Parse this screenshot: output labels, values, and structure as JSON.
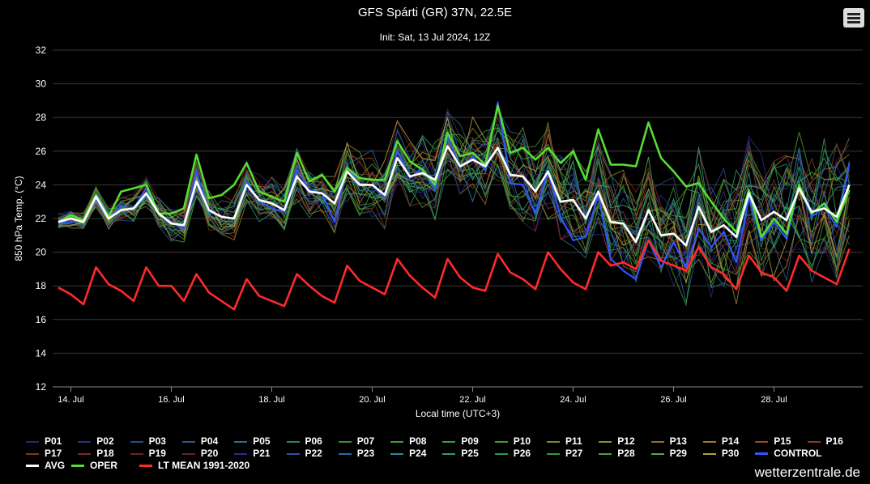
{
  "header": {
    "title": "GFS Spárti (GR) 37N, 22.5E",
    "subtitle": "Init: Sat, 13 Jul 2024, 12Z",
    "menu_icon": "hamburger-menu-icon"
  },
  "brand": "wetterzentrale.de",
  "chart_data": {
    "type": "line",
    "title": "GFS Spárti (GR) 37N, 22.5E",
    "subtitle": "Init: Sat, 13 Jul 2024, 12Z",
    "xlabel": "Local time (UTC+3)",
    "ylabel": "850 hPa Temp. (°C)",
    "ylim": [
      12,
      32
    ],
    "yticks": [
      "12",
      "14",
      "16",
      "18",
      "20",
      "22",
      "24",
      "26",
      "28",
      "30",
      "32"
    ],
    "xticks": [
      "14. Jul",
      "16. Jul",
      "18. Jul",
      "20. Jul",
      "22. Jul",
      "24. Jul",
      "26. Jul",
      "28. Jul"
    ],
    "x_start_label": "13 Jul 2024 21:00 local",
    "x_step_hours": 6,
    "grid": "horizontal",
    "legend_position": "bottom",
    "ensemble_member_names": [
      "P01",
      "P02",
      "P03",
      "P04",
      "P05",
      "P06",
      "P07",
      "P08",
      "P09",
      "P10",
      "P11",
      "P12",
      "P13",
      "P14",
      "P15",
      "P16",
      "P17",
      "P18",
      "P19",
      "P20",
      "P21",
      "P22",
      "P23",
      "P24",
      "P25",
      "P26",
      "P27",
      "P28",
      "P29",
      "P30"
    ],
    "ensemble_colors": [
      "#1e2d6e",
      "#22357a",
      "#284a86",
      "#2c5b8a",
      "#2f6d8a",
      "#2f7d6a",
      "#3a8a3a",
      "#3e9a3a",
      "#36a03a",
      "#4a9a2e",
      "#7a8a2a",
      "#9a8a2a",
      "#9a6a2a",
      "#a07a22",
      "#9a4a22",
      "#8a3a22",
      "#8a3322",
      "#7a2a2a",
      "#6a2222",
      "#6a1e3a",
      "#2a2a9a",
      "#2a56a6",
      "#2a6aa6",
      "#2a8a9a",
      "#2a9a7a",
      "#2a9a5a",
      "#3a9a3a",
      "#4aa046",
      "#5aa64e",
      "#b0a040"
    ],
    "series": [
      {
        "name": "CONTROL",
        "color": "#3355ff",
        "values": [
          21.7,
          21.8,
          21.9,
          23.1,
          22.0,
          22.7,
          22.6,
          23.8,
          22.3,
          21.8,
          21.4,
          24.8,
          22.4,
          22.1,
          22.0,
          24.2,
          23.0,
          22.6,
          22.4,
          24.9,
          23.7,
          23.5,
          21.8,
          25.1,
          24.0,
          24.0,
          23.2,
          26.0,
          24.4,
          25.0,
          23.7,
          26.9,
          25.0,
          25.7,
          24.9,
          28.9,
          24.1,
          24.0,
          22.3,
          24.8,
          22.1,
          20.7,
          20.9,
          23.4,
          19.6,
          18.9,
          18.4,
          20.7,
          19.1,
          20.6,
          19.1,
          21.4,
          20.3,
          21.2,
          19.4,
          23.3,
          20.7,
          21.8,
          20.8,
          23.9,
          22.1,
          22.7,
          21.5,
          25.3
        ]
      },
      {
        "name": "AVG",
        "color": "#ffffff",
        "values": [
          21.8,
          22.0,
          21.8,
          23.3,
          22.0,
          22.5,
          22.6,
          23.5,
          22.3,
          21.7,
          21.6,
          24.2,
          22.5,
          22.1,
          22.0,
          24.0,
          23.1,
          22.9,
          22.5,
          24.5,
          23.6,
          23.5,
          22.9,
          24.8,
          24.0,
          24.0,
          23.4,
          25.6,
          24.5,
          24.7,
          24.3,
          26.3,
          25.1,
          25.5,
          25.1,
          26.2,
          24.6,
          24.5,
          23.6,
          24.8,
          23.0,
          23.1,
          22.0,
          23.6,
          21.8,
          21.7,
          20.6,
          22.5,
          21.0,
          21.1,
          20.4,
          22.7,
          21.2,
          21.6,
          20.9,
          23.5,
          21.9,
          22.4,
          21.9,
          23.8,
          22.4,
          22.6,
          22.1,
          24.0
        ]
      },
      {
        "name": "OPER",
        "color": "#55dd33",
        "values": [
          21.8,
          22.2,
          21.9,
          23.4,
          22.1,
          23.6,
          23.8,
          24.0,
          22.3,
          22.3,
          22.6,
          25.8,
          23.2,
          23.4,
          24.0,
          25.3,
          23.6,
          23.3,
          23.0,
          25.9,
          24.2,
          24.6,
          23.6,
          25.0,
          24.4,
          24.3,
          24.3,
          26.6,
          25.4,
          24.9,
          24.0,
          27.1,
          25.7,
          25.9,
          25.2,
          28.7,
          25.9,
          26.2,
          25.5,
          26.2,
          25.3,
          26.0,
          24.3,
          27.3,
          25.2,
          25.2,
          25.1,
          27.7,
          25.6,
          24.8,
          23.9,
          24.1,
          23.0,
          22.0,
          21.2,
          23.7,
          20.9,
          22.0,
          21.1,
          24.0,
          22.3,
          22.9,
          21.8,
          23.7
        ]
      },
      {
        "name": "LT MEAN 1991-2020",
        "color": "#ff2a2a",
        "values": [
          17.9,
          17.5,
          16.9,
          19.1,
          18.1,
          17.7,
          17.1,
          19.1,
          18.0,
          18.0,
          17.1,
          18.7,
          17.6,
          17.1,
          16.6,
          18.4,
          17.4,
          17.1,
          16.8,
          18.7,
          18.0,
          17.4,
          17.0,
          19.2,
          18.3,
          17.9,
          17.5,
          19.6,
          18.6,
          17.9,
          17.3,
          19.6,
          18.5,
          17.9,
          17.7,
          19.9,
          18.8,
          18.4,
          17.8,
          20.0,
          19.0,
          18.2,
          17.8,
          20.0,
          19.2,
          19.4,
          19.0,
          20.7,
          19.5,
          19.2,
          18.9,
          20.3,
          19.1,
          18.7,
          17.8,
          19.8,
          18.8,
          18.5,
          17.7,
          19.8,
          18.9,
          18.5,
          18.1,
          20.2
        ]
      }
    ]
  },
  "legend": {
    "rows": [
      [
        "P01",
        "P02",
        "P03",
        "P04",
        "P05",
        "P06",
        "P07",
        "P08",
        "P09",
        "P10",
        "P11",
        "P12",
        "P13",
        "P14",
        "P15",
        "P16"
      ],
      [
        "P17",
        "P18",
        "P19",
        "P20",
        "P21",
        "P22",
        "P23",
        "P24",
        "P25",
        "P26",
        "P27",
        "P28",
        "P29",
        "P30",
        "CONTROL"
      ],
      [
        "AVG",
        "OPER",
        "LT MEAN 1991-2020"
      ]
    ]
  }
}
